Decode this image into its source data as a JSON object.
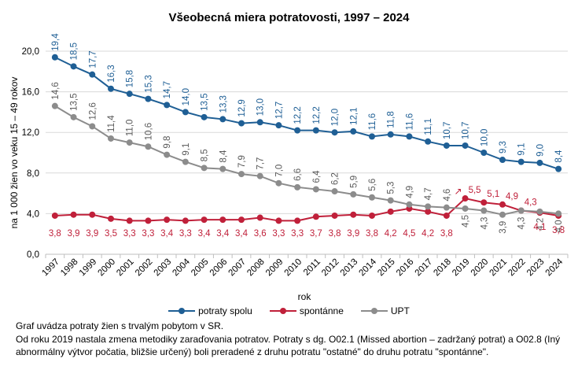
{
  "chart_data": {
    "type": "line",
    "title": "Všeobecná miera potratovosti, 1997 – 2024",
    "xlabel": "rok",
    "ylabel": "na 1 000 žien vo veku 15 – 49 rokov",
    "ylim": [
      0,
      20
    ],
    "yticks": [
      "0,0",
      "4,0",
      "8,0",
      "12,0",
      "16,0",
      "20,0"
    ],
    "grid": true,
    "legend_position": "bottom",
    "categories": [
      "1997",
      "1998",
      "1999",
      "2000",
      "2001",
      "2002",
      "2003",
      "2004",
      "2005",
      "2006",
      "2007",
      "2008",
      "2009",
      "2010",
      "2011",
      "2012",
      "2013",
      "2014",
      "2015",
      "2016",
      "2017",
      "2018",
      "2019",
      "2020",
      "2021",
      "2022",
      "2023",
      "2024"
    ],
    "series": [
      {
        "name": "potraty spolu",
        "color": "#1f5f95",
        "values": [
          19.4,
          18.5,
          17.7,
          16.3,
          15.8,
          15.3,
          14.7,
          14.0,
          13.5,
          13.3,
          12.9,
          13.0,
          12.7,
          12.2,
          12.2,
          12.0,
          12.1,
          11.6,
          11.8,
          11.6,
          11.1,
          10.7,
          10.7,
          10.0,
          9.3,
          9.1,
          9.0,
          8.4
        ],
        "labels": [
          "19,4",
          "18,5",
          "17,7",
          "16,3",
          "15,8",
          "15,3",
          "14,7",
          "14,0",
          "13,5",
          "13,3",
          "12,9",
          "13,0",
          "12,7",
          "12,2",
          "12,2",
          "12,0",
          "12,1",
          "11,6",
          "11,8",
          "11,6",
          "11,1",
          "10,7",
          "10,7",
          "10,0",
          "9,3",
          "9,1",
          "9,0",
          "8,4"
        ]
      },
      {
        "name": "spontánne",
        "color": "#c0203a",
        "values": [
          3.8,
          3.9,
          3.9,
          3.5,
          3.3,
          3.3,
          3.4,
          3.3,
          3.4,
          3.4,
          3.4,
          3.6,
          3.3,
          3.3,
          3.7,
          3.8,
          3.9,
          3.8,
          4.2,
          4.5,
          4.2,
          3.8,
          5.5,
          5.1,
          4.9,
          4.3,
          4.1,
          3.8
        ],
        "labels": [
          "3,8",
          "3,9",
          "3,9",
          "3,5",
          "3,3",
          "3,3",
          "3,4",
          "3,3",
          "3,4",
          "3,4",
          "3,4",
          "3,6",
          "3,3",
          "3,3",
          "3,7",
          "3,8",
          "3,9",
          "3,8",
          "4,2",
          "4,5",
          "4,2",
          "3,8",
          "5,5",
          "5,1",
          "4,9",
          "4,3",
          "4,1",
          "3,8"
        ]
      },
      {
        "name": "UPT",
        "color": "#8c8c8c",
        "values": [
          14.6,
          13.5,
          12.6,
          11.4,
          11.0,
          10.6,
          9.8,
          9.1,
          8.5,
          8.4,
          7.9,
          7.7,
          7.0,
          6.6,
          6.4,
          6.2,
          5.9,
          5.6,
          5.3,
          4.9,
          4.7,
          4.6,
          4.5,
          4.3,
          3.9,
          4.3,
          4.2,
          4.0
        ],
        "labels": [
          "14,6",
          "13,5",
          "12,6",
          "11,4",
          "11,0",
          "10,6",
          "9,8",
          "9,1",
          "8,5",
          "8,4",
          "7,9",
          "7,7",
          "7,0",
          "6,6",
          "6,4",
          "6,2",
          "5,9",
          "5,6",
          "5,3",
          "4,9",
          "4,7",
          "4,6",
          "4,5",
          "4,3",
          "3,9",
          "4,3",
          "4,2",
          "4,0"
        ]
      }
    ],
    "annotations": [
      {
        "text": "↗",
        "color": "#c0203a",
        "near": "spontánne 2019"
      }
    ]
  },
  "footnote": [
    "Graf uvádza potraty žien s trvalým pobytom v SR.",
    "Od roku 2019 nastala zmena metodiky zaraďovania potratov. Potraty s dg. O02.1 (Missed abortion – zadržaný potrat) a O02.8 (Iný abnormálny výtvor počatia, bližšie určený) boli preradené z druhu potratu \"ostatné\" do druhu potratu \"spontánne\"."
  ]
}
